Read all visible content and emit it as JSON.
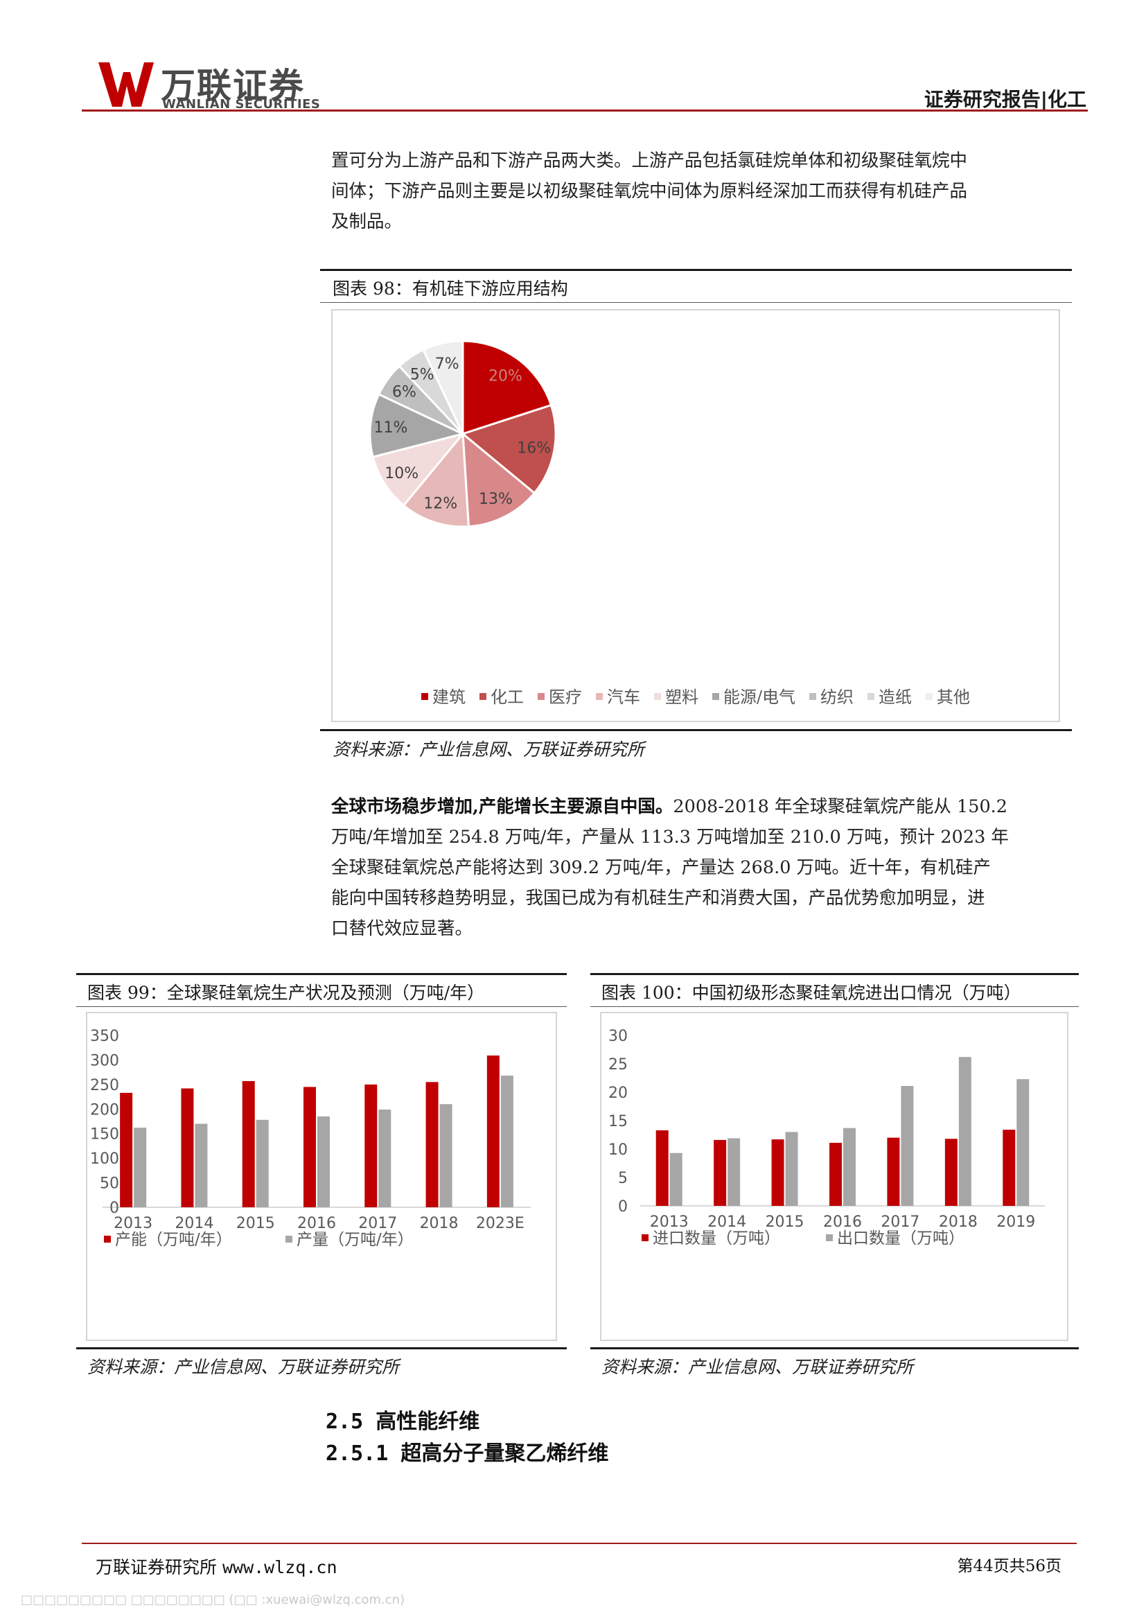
{
  "header": {
    "logo_cn": "万联证券",
    "logo_en": "WANLIAN SECURITIES",
    "right": "证券研究报告|化工"
  },
  "intro_paragraph": {
    "lines": [
      "置可分为上游产品和下游产品两大类。上游产品包括氯硅烷单体和初级聚硅氧烷中",
      "间体；下游产品则主要是以初级聚硅氧烷中间体为原料经深加工而获得有机硅产品",
      "及制品。"
    ]
  },
  "figure98": {
    "title": "图表 98：有机硅下游应用结构",
    "source": "资料来源：产业信息网、万联证券研究所",
    "chart_data": {
      "type": "pie",
      "title": "",
      "slices": [
        {
          "label": "建筑",
          "value": 20,
          "display": "20%",
          "color": "#c00000"
        },
        {
          "label": "化工",
          "value": 16,
          "display": "16%",
          "color": "#c0504d"
        },
        {
          "label": "医疗",
          "value": 13,
          "display": "13%",
          "color": "#d9888a"
        },
        {
          "label": "汽车",
          "value": 12,
          "display": "12%",
          "color": "#e6b8b7"
        },
        {
          "label": "塑料",
          "value": 10,
          "display": "10%",
          "color": "#f2dcdb"
        },
        {
          "label": "能源/电气",
          "value": 11,
          "display": "11%",
          "color": "#a6a6a6"
        },
        {
          "label": "纺织",
          "value": 6,
          "display": "6%",
          "color": "#bfbfbf"
        },
        {
          "label": "造纸",
          "value": 5,
          "display": "5%",
          "color": "#d9d9d9"
        },
        {
          "label": "其他",
          "value": 7,
          "display": "7%",
          "color": "#eeeeee"
        }
      ],
      "legend_position": "bottom"
    }
  },
  "body_paragraph": {
    "bold_lead": "全球市场稳步增加,产能增长主要源自中国。",
    "lines": [
      "2008-2018 年全球聚硅氧烷产能从 150.2",
      "万吨/年增加至 254.8 万吨/年，产量从 113.3 万吨增加至 210.0 万吨，预计 2023 年",
      "全球聚硅氧烷总产能将达到 309.2 万吨/年，产量达 268.0 万吨。近十年，有机硅产",
      "能向中国转移趋势明显，我国已成为有机硅生产和消费大国，产品优势愈加明显，进",
      "口替代效应显著。"
    ]
  },
  "figure99": {
    "title": "图表 99：全球聚硅氧烷生产状况及预测（万吨/年）",
    "source": "资料来源：产业信息网、万联证券研究所",
    "chart_data": {
      "type": "bar",
      "title": "",
      "categories": [
        "2013",
        "2014",
        "2015",
        "2016",
        "2017",
        "2018",
        "2023E"
      ],
      "series": [
        {
          "name": "产能（万吨/年）",
          "values": [
            233,
            242,
            257,
            245,
            250,
            255,
            309
          ],
          "color": "#c00000"
        },
        {
          "name": "产量（万吨/年）",
          "values": [
            162,
            170,
            178,
            185,
            199,
            210,
            268
          ],
          "color": "#a6a6a6"
        }
      ],
      "ylim": [
        0,
        350
      ],
      "yticks": [
        0,
        50,
        100,
        150,
        200,
        250,
        300,
        350
      ],
      "legend_position": "bottom"
    }
  },
  "figure100": {
    "title": "图表 100：中国初级形态聚硅氧烷进出口情况（万吨）",
    "source": "资料来源：产业信息网、万联证券研究所",
    "chart_data": {
      "type": "bar",
      "title": "",
      "categories": [
        "2013",
        "2014",
        "2015",
        "2016",
        "2017",
        "2018",
        "2019"
      ],
      "series": [
        {
          "name": "进口数量（万吨）",
          "values": [
            13.3,
            11.6,
            11.7,
            11.1,
            12.0,
            11.8,
            13.4
          ],
          "color": "#c00000"
        },
        {
          "name": "出口数量（万吨）",
          "values": [
            9.3,
            11.9,
            13.0,
            13.7,
            21.1,
            26.2,
            22.3
          ],
          "color": "#a6a6a6"
        }
      ],
      "ylim": [
        0,
        30
      ],
      "yticks": [
        0,
        5,
        10,
        15,
        20,
        25,
        30
      ],
      "legend_position": "bottom"
    }
  },
  "headings": {
    "h1": "2.5 高性能纤维",
    "h2": "2.5.1 超高分子量聚乙烯纤维"
  },
  "footer": {
    "left_cn": "万联证券研究所",
    "left_url": "www.wlzq.cn",
    "page": "第44页共56页"
  },
  "watermark": "□□□□□□□□□ □□□□□□□□ (□□ :xuewai@wlzq.com.cn)"
}
